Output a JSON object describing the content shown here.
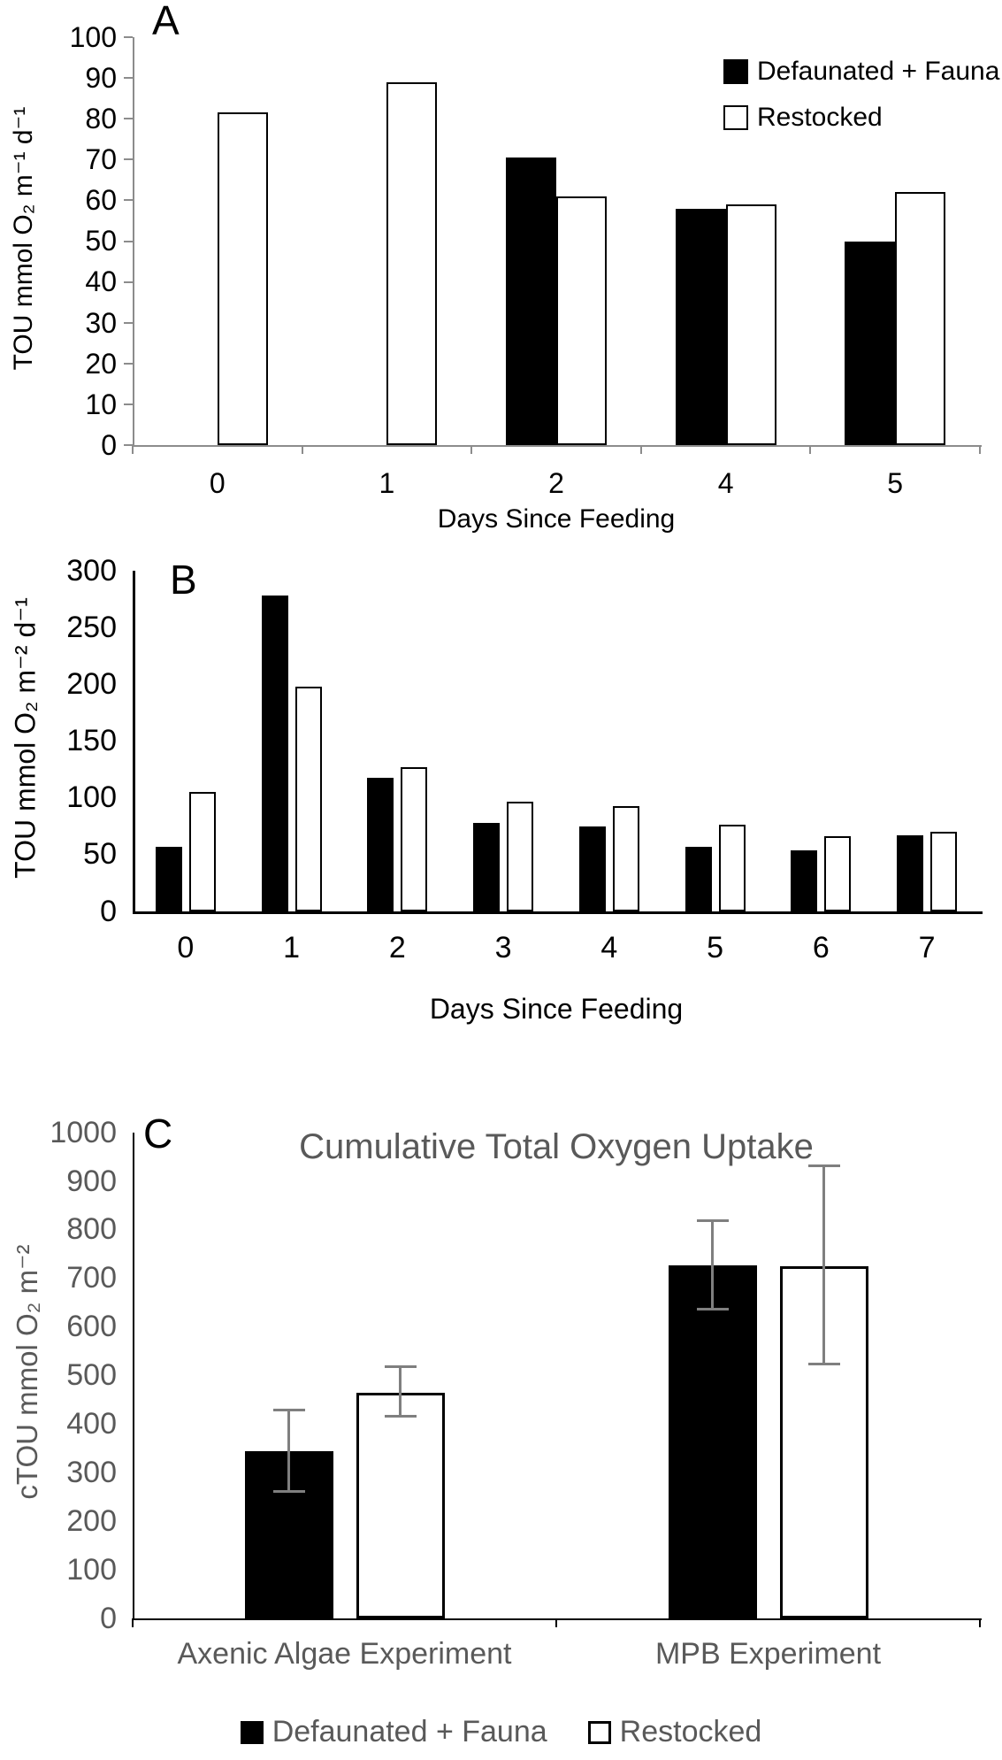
{
  "figure": {
    "background": "#ffffff"
  },
  "colors": {
    "black": "#000000",
    "white": "#ffffff",
    "gray_text": "#595959",
    "gray_axis": "#8c8c8c",
    "error_bar": "#7f7f7f"
  },
  "legend": {
    "defaunated": "Defaunated + Fauna",
    "restocked": "Restocked"
  },
  "chart_data": [
    {
      "id": "A",
      "type": "bar",
      "panel_label": "A",
      "title": "",
      "ylabel": "TOU mmol O₂ m⁻¹ d⁻¹",
      "xlabel": "Days Since Feeding",
      "ylim": [
        0,
        100
      ],
      "ytick_step": 10,
      "grid": false,
      "legend_position": "top-right",
      "axis_color": "#8c8c8c",
      "text_color": "#000000",
      "categories": [
        "0",
        "1",
        "2",
        "4",
        "5"
      ],
      "series": [
        {
          "name": "Defaunated + Fauna",
          "fill": "#000000",
          "values": [
            null,
            null,
            70.5,
            58,
            50
          ]
        },
        {
          "name": "Restocked",
          "fill": "#ffffff",
          "values": [
            81.5,
            89,
            61,
            59,
            62
          ]
        }
      ]
    },
    {
      "id": "B",
      "type": "bar",
      "panel_label": "B",
      "title": "",
      "ylabel": "TOU mmol O₂ m⁻² d⁻¹",
      "xlabel": "Days Since Feeding",
      "ylim": [
        0,
        300
      ],
      "ytick_step": 50,
      "grid": false,
      "legend_position": "none",
      "axis_color": "#000000",
      "text_color": "#000000",
      "categories": [
        "0",
        "1",
        "2",
        "3",
        "4",
        "5",
        "6",
        "7"
      ],
      "series": [
        {
          "name": "Defaunated + Fauna",
          "fill": "#000000",
          "values": [
            57,
            278,
            118,
            78,
            75,
            57,
            54,
            67
          ]
        },
        {
          "name": "Restocked",
          "fill": "#ffffff",
          "values": [
            105,
            198,
            127,
            97,
            93,
            76,
            66,
            70
          ]
        }
      ]
    },
    {
      "id": "C",
      "type": "bar",
      "panel_label": "C",
      "title": "Cumulative Total Oxygen Uptake",
      "ylabel": "cTOU mmol O₂ m⁻²",
      "xlabel": "",
      "ylim": [
        0,
        1000
      ],
      "ytick_step": 100,
      "grid": false,
      "legend_position": "bottom",
      "axis_color": "#000000",
      "text_color": "#595959",
      "categories": [
        "Axenic Algae Experiment",
        "MPB Experiment"
      ],
      "series": [
        {
          "name": "Defaunated + Fauna",
          "fill": "#000000",
          "values": [
            345,
            727
          ],
          "error_low": [
            260,
            635
          ],
          "error_high": [
            430,
            820
          ]
        },
        {
          "name": "Restocked",
          "fill": "#ffffff",
          "values": [
            465,
            725
          ],
          "error_low": [
            415,
            523
          ],
          "error_high": [
            520,
            932
          ]
        }
      ]
    }
  ]
}
